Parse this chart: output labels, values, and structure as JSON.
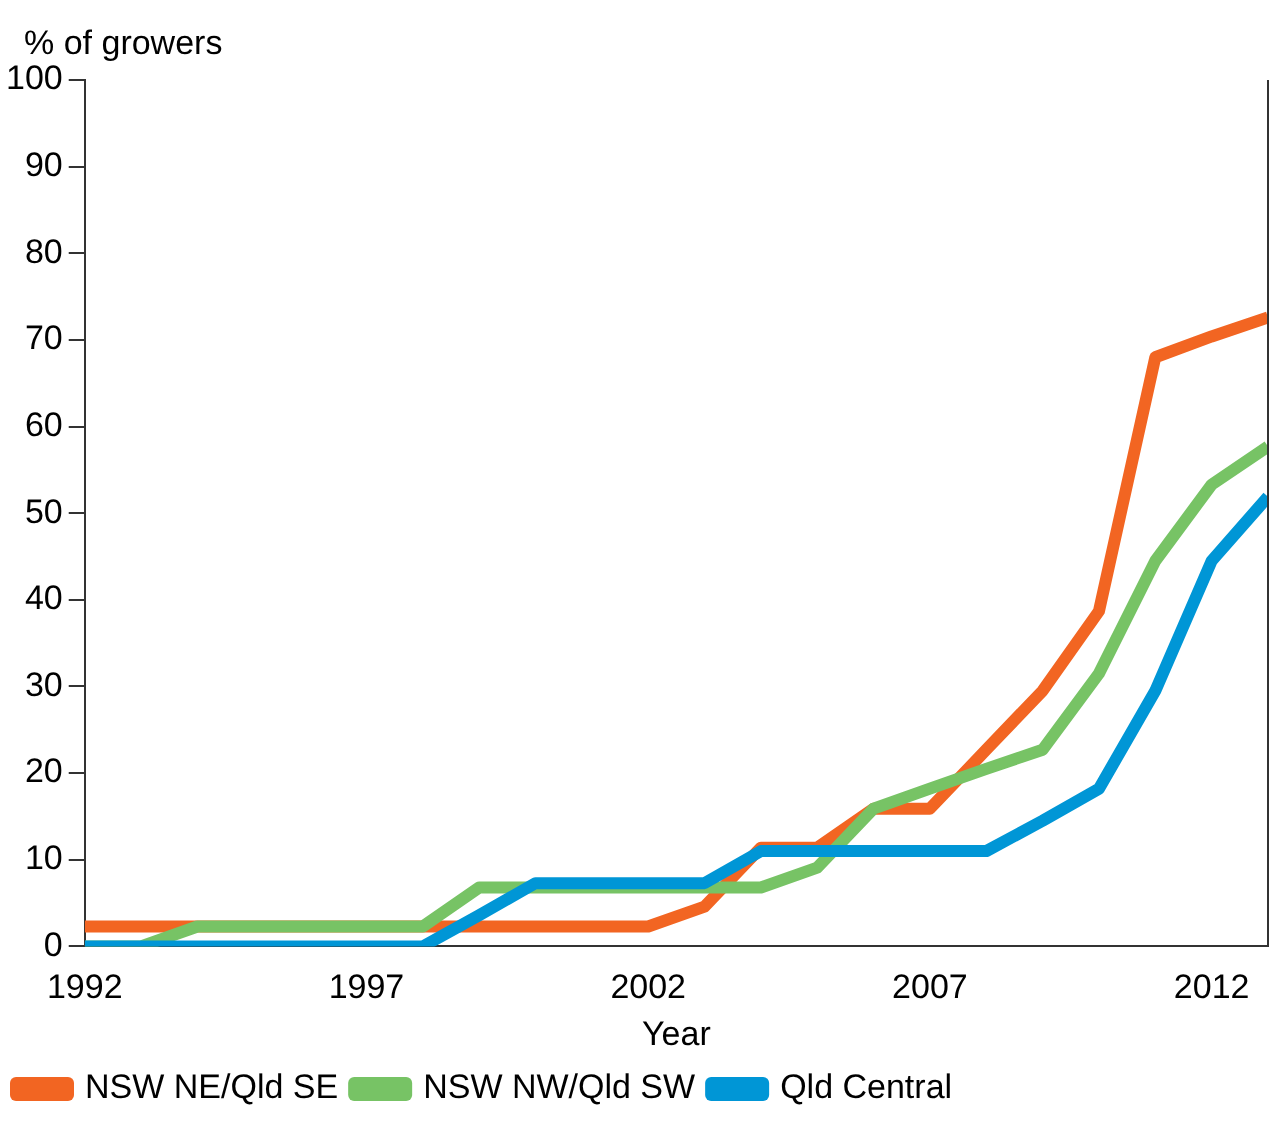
{
  "chart_data": {
    "type": "line",
    "ylabel": "% of growers",
    "xlabel": "Year",
    "x": [
      1992,
      1993,
      1994,
      1995,
      1996,
      1997,
      1998,
      1999,
      2000,
      2001,
      2002,
      2003,
      2004,
      2005,
      2006,
      2007,
      2008,
      2009,
      2010,
      2011,
      2012,
      2013
    ],
    "series": [
      {
        "name": "NSW NE/Qld SE",
        "color": "#f26522",
        "values": [
          2.3,
          2.3,
          2.3,
          2.3,
          2.3,
          2.3,
          2.3,
          2.3,
          2.3,
          2.3,
          2.3,
          4.6,
          11.4,
          11.4,
          15.9,
          15.9,
          22.7,
          29.5,
          38.7,
          68,
          70.4,
          72.6
        ]
      },
      {
        "name": "NSW NW/Qld SW",
        "color": "#77c365",
        "values": [
          0,
          0,
          2.3,
          2.3,
          2.3,
          2.3,
          2.3,
          6.8,
          6.8,
          6.8,
          6.8,
          6.8,
          6.8,
          9.1,
          15.9,
          18.2,
          20.5,
          22.7,
          31.5,
          44.5,
          53.3,
          57.7
        ]
      },
      {
        "name": "Qld Central",
        "color": "#0096d6",
        "values": [
          0,
          0,
          0,
          0,
          0,
          0,
          0,
          3.6,
          7.3,
          7.3,
          7.3,
          7.3,
          11,
          11,
          11,
          11,
          11,
          14.5,
          18.2,
          29.5,
          44.5,
          51.9
        ]
      }
    ],
    "xlim": [
      1992,
      2013
    ],
    "xticks": [
      1992,
      1997,
      2002,
      2007,
      2012
    ],
    "ylim": [
      0,
      100
    ],
    "yticks": [
      0,
      10,
      20,
      30,
      40,
      50,
      60,
      70,
      80,
      90,
      100
    ],
    "grid": false,
    "legend": "bottom",
    "marker": "none",
    "line_style": "solid"
  }
}
